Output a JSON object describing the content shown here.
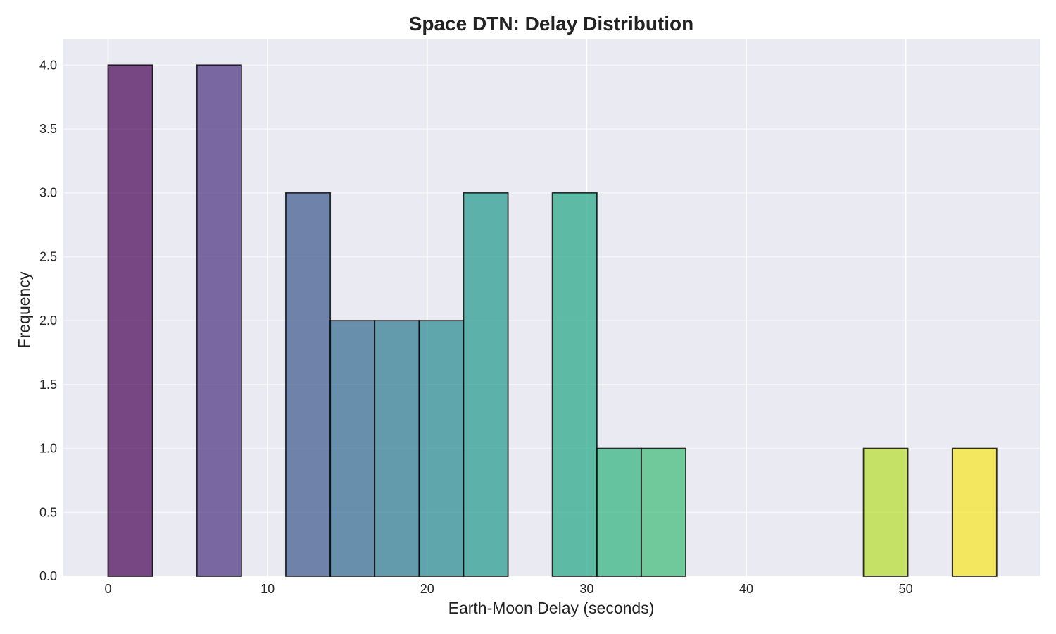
{
  "chart_data": {
    "type": "bar",
    "title": "Space DTN: Delay Distribution",
    "xlabel": "Earth-Moon Delay (seconds)",
    "ylabel": "Frequency",
    "xlim": [
      -2.8,
      58.4
    ],
    "ylim": [
      0,
      4.2
    ],
    "xticks": [
      0,
      10,
      20,
      30,
      40,
      50
    ],
    "yticks": [
      0.0,
      0.5,
      1.0,
      1.5,
      2.0,
      2.5,
      3.0,
      3.5,
      4.0
    ],
    "grid": true,
    "background": "#eaeaf2",
    "colormap": "viridis",
    "bins": [
      {
        "start": 0.0,
        "end": 2.79,
        "count": 4,
        "color": "#440154"
      },
      {
        "start": 2.79,
        "end": 5.57,
        "count": 0,
        "color": "#481a6c"
      },
      {
        "start": 5.57,
        "end": 8.36,
        "count": 4,
        "color": "#472f7d"
      },
      {
        "start": 8.36,
        "end": 11.14,
        "count": 0,
        "color": "#414487"
      },
      {
        "start": 11.14,
        "end": 13.93,
        "count": 3,
        "color": "#39568c"
      },
      {
        "start": 13.93,
        "end": 16.71,
        "count": 2,
        "color": "#31688e"
      },
      {
        "start": 16.71,
        "end": 19.5,
        "count": 2,
        "color": "#2a788e"
      },
      {
        "start": 19.5,
        "end": 22.28,
        "count": 2,
        "color": "#23888e"
      },
      {
        "start": 22.28,
        "end": 25.07,
        "count": 3,
        "color": "#1f988b"
      },
      {
        "start": 25.07,
        "end": 27.85,
        "count": 0,
        "color": "#22a884"
      },
      {
        "start": 27.85,
        "end": 30.64,
        "count": 3,
        "color": "#21a685"
      },
      {
        "start": 30.64,
        "end": 33.42,
        "count": 1,
        "color": "#2db27d"
      },
      {
        "start": 33.42,
        "end": 36.21,
        "count": 1,
        "color": "#3bbb75"
      },
      {
        "start": 36.21,
        "end": 38.99,
        "count": 0,
        "color": "#52c569"
      },
      {
        "start": 38.99,
        "end": 41.78,
        "count": 0,
        "color": "#6ece58"
      },
      {
        "start": 41.78,
        "end": 44.56,
        "count": 0,
        "color": "#86d549"
      },
      {
        "start": 44.56,
        "end": 47.35,
        "count": 0,
        "color": "#a2da37"
      },
      {
        "start": 47.35,
        "end": 50.13,
        "count": 1,
        "color": "#b5de2b"
      },
      {
        "start": 50.13,
        "end": 52.92,
        "count": 0,
        "color": "#d8e219"
      },
      {
        "start": 52.92,
        "end": 55.7,
        "count": 1,
        "color": "#f5e51f"
      }
    ]
  }
}
